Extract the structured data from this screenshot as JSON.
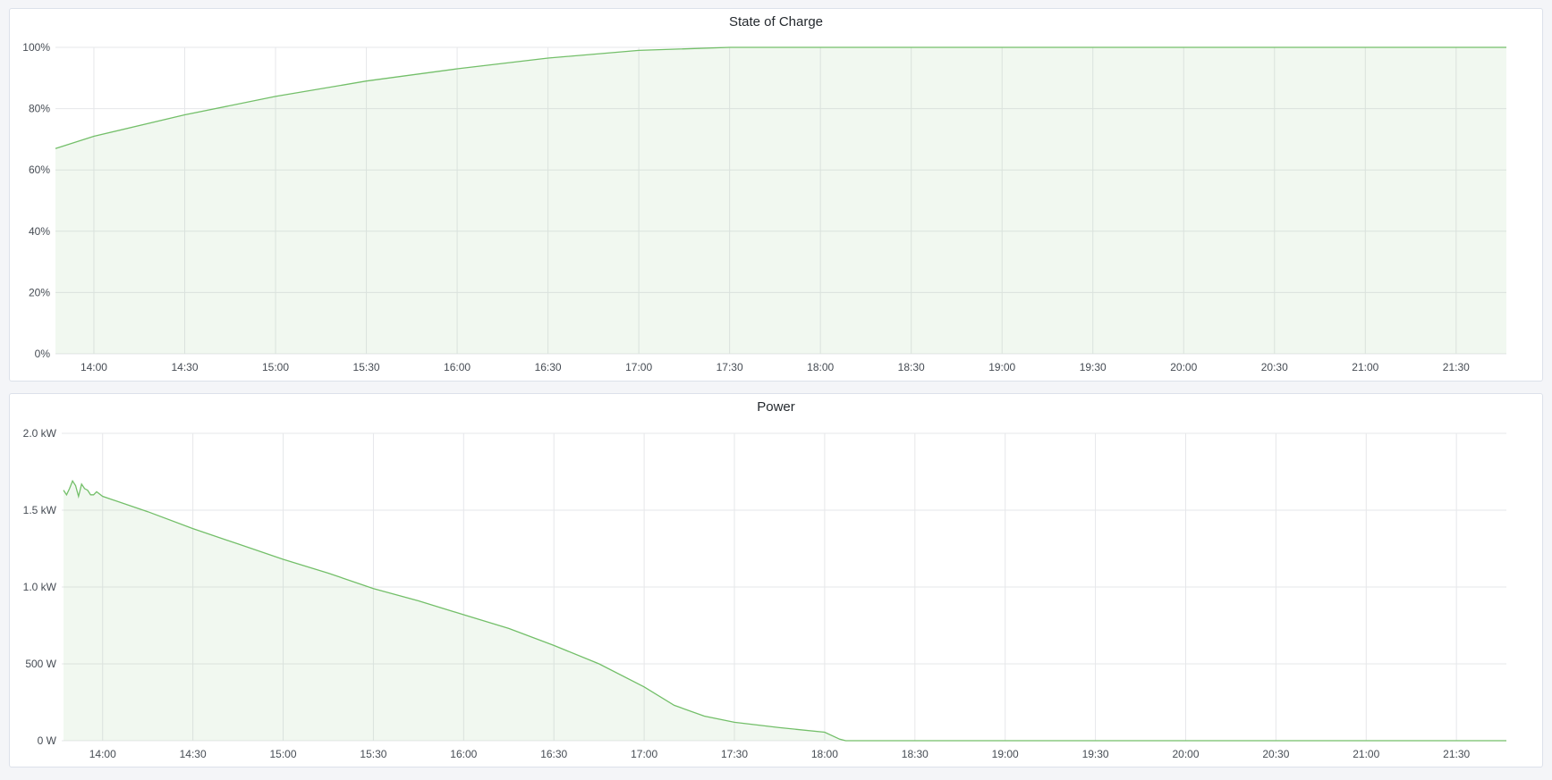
{
  "colors": {
    "line": "#73bf69",
    "fill": "#73bf69",
    "grid": "#e6e7ea"
  },
  "chart_data": [
    {
      "type": "area",
      "title": "State of Charge",
      "x_range": [
        "13:47",
        "21:47"
      ],
      "x_ticks": [
        "14:00",
        "14:30",
        "15:00",
        "15:30",
        "16:00",
        "16:30",
        "17:00",
        "17:30",
        "18:00",
        "18:30",
        "19:00",
        "19:30",
        "20:00",
        "20:30",
        "21:00",
        "21:30"
      ],
      "y_ticks": [
        "0%",
        "20%",
        "40%",
        "60%",
        "80%",
        "100%"
      ],
      "ylim": [
        0,
        100
      ],
      "unit": "%",
      "grid": true,
      "x": [
        "13:47",
        "14:00",
        "14:30",
        "15:00",
        "15:30",
        "16:00",
        "16:30",
        "17:00",
        "17:30",
        "18:00",
        "18:30",
        "19:00",
        "20:00",
        "21:00",
        "21:47"
      ],
      "values": [
        67,
        71,
        78,
        84,
        89,
        93,
        96.5,
        99,
        100,
        100,
        100,
        100,
        100,
        100,
        100
      ]
    },
    {
      "type": "area",
      "title": "Power",
      "x_range": [
        "13:47",
        "21:47"
      ],
      "x_ticks": [
        "14:00",
        "14:30",
        "15:00",
        "15:30",
        "16:00",
        "16:30",
        "17:00",
        "17:30",
        "18:00",
        "18:30",
        "19:00",
        "19:30",
        "20:00",
        "20:30",
        "21:00",
        "21:30"
      ],
      "y_ticks": [
        "0 W",
        "500 W",
        "1.0 kW",
        "1.5 kW",
        "2.0 kW"
      ],
      "ylim": [
        0,
        2000
      ],
      "unit": "W",
      "grid": true,
      "x": [
        "13:47",
        "13:48",
        "13:49",
        "13:50",
        "13:51",
        "13:52",
        "13:53",
        "13:54",
        "13:55",
        "13:56",
        "13:57",
        "13:58",
        "14:00",
        "14:15",
        "14:30",
        "14:45",
        "15:00",
        "15:15",
        "15:30",
        "15:45",
        "16:00",
        "16:15",
        "16:30",
        "16:45",
        "17:00",
        "17:10",
        "17:20",
        "17:30",
        "17:45",
        "18:00",
        "18:05",
        "18:07",
        "18:30",
        "19:00",
        "20:00",
        "21:00",
        "21:47"
      ],
      "values": [
        1630,
        1600,
        1640,
        1690,
        1660,
        1590,
        1670,
        1640,
        1630,
        1600,
        1600,
        1620,
        1590,
        1490,
        1380,
        1280,
        1180,
        1090,
        990,
        910,
        820,
        730,
        620,
        500,
        350,
        230,
        160,
        120,
        85,
        55,
        10,
        0,
        0,
        0,
        0,
        0,
        0
      ]
    }
  ]
}
